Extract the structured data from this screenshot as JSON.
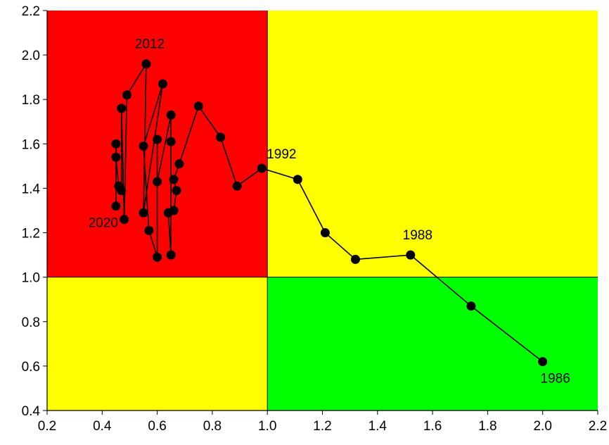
{
  "chart_data": {
    "type": "scatter",
    "title": "",
    "xlabel": "",
    "ylabel": "",
    "xlim": [
      0.2,
      2.2
    ],
    "ylim": [
      0.4,
      2.2
    ],
    "xticks": [
      "0.2",
      "0.4",
      "0.6",
      "0.8",
      "1.0",
      "1.2",
      "1.4",
      "1.6",
      "1.8",
      "2.0",
      "2.2"
    ],
    "yticks": [
      "0.4",
      "0.6",
      "0.8",
      "1.0",
      "1.2",
      "1.4",
      "1.6",
      "1.8",
      "2.0",
      "2.2"
    ],
    "grid": false,
    "connected": true,
    "regions": [
      {
        "x": [
          0.2,
          1.0
        ],
        "y": [
          1.0,
          2.2
        ],
        "color": "#ff0000"
      },
      {
        "x": [
          1.0,
          2.2
        ],
        "y": [
          1.0,
          2.2
        ],
        "color": "#ffff00"
      },
      {
        "x": [
          0.2,
          1.0
        ],
        "y": [
          0.4,
          1.0
        ],
        "color": "#ffff00"
      },
      {
        "x": [
          1.0,
          2.2
        ],
        "y": [
          0.4,
          1.0
        ],
        "color": "#00ff00"
      }
    ],
    "points": [
      {
        "x": 2.0,
        "y": 0.62,
        "label": "1986"
      },
      {
        "x": 1.74,
        "y": 0.87
      },
      {
        "x": 1.52,
        "y": 1.1,
        "label": "1988"
      },
      {
        "x": 1.32,
        "y": 1.08
      },
      {
        "x": 1.21,
        "y": 1.2
      },
      {
        "x": 1.11,
        "y": 1.44
      },
      {
        "x": 0.98,
        "y": 1.49,
        "label": "1992"
      },
      {
        "x": 0.89,
        "y": 1.41
      },
      {
        "x": 0.83,
        "y": 1.63
      },
      {
        "x": 0.75,
        "y": 1.77
      },
      {
        "x": 0.68,
        "y": 1.51
      },
      {
        "x": 0.66,
        "y": 1.44
      },
      {
        "x": 0.67,
        "y": 1.39
      },
      {
        "x": 0.66,
        "y": 1.3
      },
      {
        "x": 0.64,
        "y": 1.29
      },
      {
        "x": 0.65,
        "y": 1.1
      },
      {
        "x": 0.65,
        "y": 1.61
      },
      {
        "x": 0.65,
        "y": 1.73
      },
      {
        "x": 0.6,
        "y": 1.43
      },
      {
        "x": 0.6,
        "y": 1.62
      },
      {
        "x": 0.6,
        "y": 1.09
      },
      {
        "x": 0.57,
        "y": 1.21
      },
      {
        "x": 0.55,
        "y": 1.59
      },
      {
        "x": 0.62,
        "y": 1.87
      },
      {
        "x": 0.55,
        "y": 1.29
      },
      {
        "x": 0.56,
        "y": 1.96,
        "label": "2012"
      },
      {
        "x": 0.49,
        "y": 1.82
      },
      {
        "x": 0.48,
        "y": 1.26
      },
      {
        "x": 0.47,
        "y": 1.76
      },
      {
        "x": 0.47,
        "y": 1.39
      },
      {
        "x": 0.46,
        "y": 1.41
      },
      {
        "x": 0.45,
        "y": 1.54
      },
      {
        "x": 0.45,
        "y": 1.6
      },
      {
        "x": 0.45,
        "y": 1.32,
        "label": "2020"
      }
    ],
    "marker_color": "#000000",
    "line_color": "#000000"
  }
}
